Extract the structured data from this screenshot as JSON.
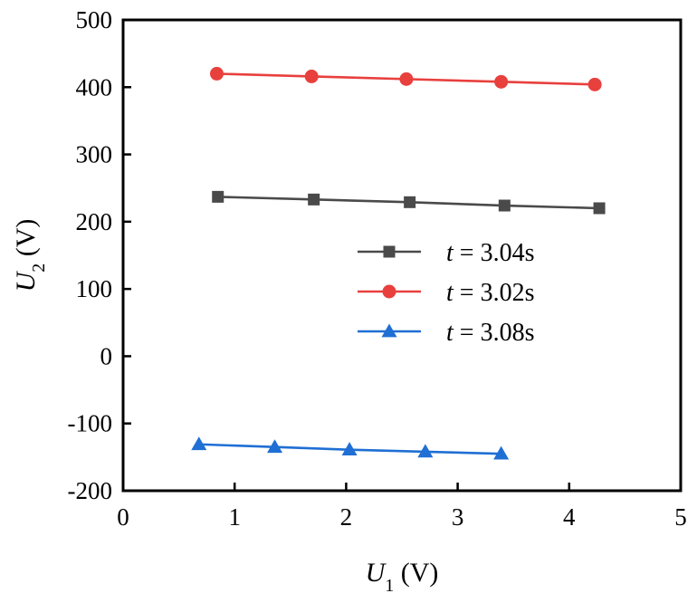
{
  "chart_data": {
    "type": "line",
    "xlabel": {
      "symbol": "U",
      "sub": "1",
      "unit": " (V)"
    },
    "ylabel": {
      "symbol": "U",
      "sub": "2",
      "unit": " (V)"
    },
    "xlim": [
      0,
      5
    ],
    "ylim": [
      -200,
      500
    ],
    "xticks": [
      0,
      1,
      2,
      3,
      4,
      5
    ],
    "yticks": [
      -200,
      -100,
      0,
      100,
      200,
      300,
      400,
      500
    ],
    "grid": false,
    "legend_position": "right",
    "series": [
      {
        "name": "t = 3.04s",
        "name_italic": "t",
        "name_rest": " = 3.04s",
        "color": "#4a4a4a",
        "marker": "square",
        "x": [
          0.85,
          1.71,
          2.57,
          3.42,
          4.27
        ],
        "y": [
          237,
          233,
          229,
          224,
          220
        ]
      },
      {
        "name": "t = 3.02s",
        "name_italic": "t",
        "name_rest": " = 3.02s",
        "color": "#e8403d",
        "marker": "circle",
        "x": [
          0.84,
          1.69,
          2.54,
          3.39,
          4.23
        ],
        "y": [
          420,
          416,
          412,
          408,
          404
        ]
      },
      {
        "name": "t = 3.08s",
        "name_italic": "t",
        "name_rest": " = 3.08s",
        "color": "#1f6fd4",
        "marker": "triangle",
        "x": [
          0.68,
          1.36,
          2.03,
          2.71,
          3.39
        ],
        "y": [
          -131,
          -135,
          -139,
          -142,
          -145
        ]
      }
    ]
  }
}
